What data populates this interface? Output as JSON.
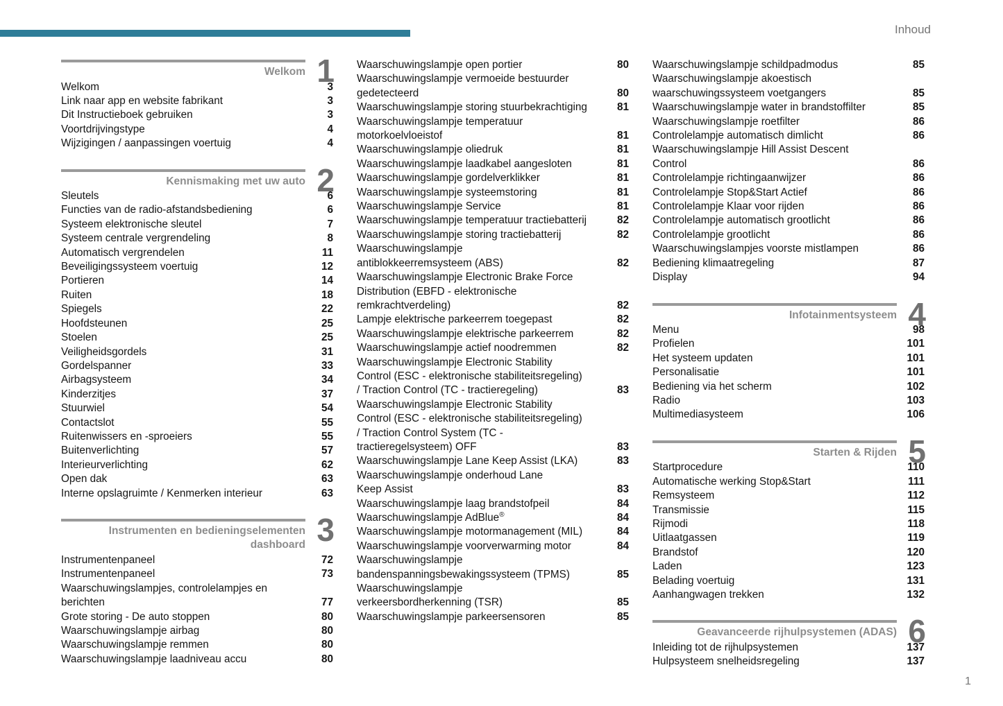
{
  "header": {
    "label": "Inhoud"
  },
  "footer": {
    "page_number": "1"
  },
  "colors": {
    "accent": "#2e7d98",
    "text": "#151515",
    "muted_gray": "#757575",
    "section_title_gray": "#8d8d8d",
    "section_rule_gray": "#9a9a9a",
    "section_numeral_gray": "#717171"
  },
  "columns": [
    {
      "blocks": [
        {
          "type": "section",
          "number": "1",
          "title_lines": [
            "Welkom"
          ]
        },
        {
          "type": "entries",
          "items": [
            {
              "label": "Welkom",
              "page": "3"
            },
            {
              "label": "Link naar app en website fabrikant",
              "page": "3"
            },
            {
              "label": "Dit Instructieboek gebruiken",
              "page": "3"
            },
            {
              "label": "Voortdrijvingstype",
              "page": "4"
            },
            {
              "label": "Wijzigingen / aanpassingen voertuig",
              "page": "4"
            }
          ]
        },
        {
          "type": "section",
          "number": "2",
          "title_lines": [
            "Kennismaking met uw auto"
          ]
        },
        {
          "type": "entries",
          "items": [
            {
              "label": "Sleutels",
              "page": "6"
            },
            {
              "label": "Functies van de radio-afstandsbediening",
              "page": "6"
            },
            {
              "label": "Systeem elektronische sleutel",
              "page": "7"
            },
            {
              "label": "Systeem centrale vergrendeling",
              "page": "8"
            },
            {
              "label": "Automatisch vergrendelen",
              "page": "11"
            },
            {
              "label": "Beveiligingssysteem voertuig",
              "page": "12"
            },
            {
              "label": "Portieren",
              "page": "14"
            },
            {
              "label": "Ruiten",
              "page": "18"
            },
            {
              "label": "Spiegels",
              "page": "22"
            },
            {
              "label": "Hoofdsteunen",
              "page": "25"
            },
            {
              "label": "Stoelen",
              "page": "25"
            },
            {
              "label": "Veiligheidsgordels",
              "page": "31"
            },
            {
              "label": "Gordelspanner",
              "page": "33"
            },
            {
              "label": "Airbagsysteem",
              "page": "34"
            },
            {
              "label": "Kinderzitjes",
              "page": "37"
            },
            {
              "label": "Stuurwiel",
              "page": "54"
            },
            {
              "label": "Contactslot",
              "page": "55"
            },
            {
              "label": "Ruitenwissers en -sproeiers",
              "page": "55"
            },
            {
              "label": "Buitenverlichting",
              "page": "57"
            },
            {
              "label": "Interieurverlichting",
              "page": "62"
            },
            {
              "label": "Open dak",
              "page": "63"
            },
            {
              "label": "Interne opslagruimte / Kenmerken interieur",
              "page": "63"
            }
          ]
        },
        {
          "type": "section",
          "number": "3",
          "title_lines": [
            "Instrumenten en bedieningselementen",
            "dashboard"
          ]
        },
        {
          "type": "entries",
          "items": [
            {
              "label": "Instrumentenpaneel",
              "page": "72"
            },
            {
              "label": "Instrumentenpaneel",
              "page": "73"
            },
            {
              "label": "Waarschuwingslampjes, controlelampjes en berichten",
              "page": "77"
            },
            {
              "label": "Grote storing - De auto stoppen",
              "page": "80"
            },
            {
              "label": "Waarschuwingslampje airbag",
              "page": "80"
            },
            {
              "label": "Waarschuwingslampje remmen",
              "page": "80"
            },
            {
              "label": "Waarschuwingslampje laadniveau accu",
              "page": "80"
            }
          ]
        }
      ]
    },
    {
      "blocks": [
        {
          "type": "entries",
          "items": [
            {
              "label": "Waarschuwingslampje open portier",
              "page": "80"
            },
            {
              "label": "Waarschuwingslampje vermoeide bestuurder gedetecteerd",
              "page": "80"
            },
            {
              "label": "Waarschuwingslampje storing stuurbekrachtiging",
              "page": "81"
            },
            {
              "label": "Waarschuwingslampje temperatuur motorkoelvloeistof",
              "page": "81"
            },
            {
              "label": "Waarschuwingslampje oliedruk",
              "page": "81"
            },
            {
              "label": "Waarschuwingslampje laadkabel aangesloten",
              "page": "81"
            },
            {
              "label": "Waarschuwingslampje gordelverklikker",
              "page": "81"
            },
            {
              "label": "Waarschuwingslampje systeemstoring",
              "page": "81"
            },
            {
              "label": "Waarschuwingslampje Service",
              "page": "81"
            },
            {
              "label": "Waarschuwingslampje temperatuur tractiebatterij",
              "page": "82"
            },
            {
              "label": "Waarschuwingslampje storing tractiebatterij",
              "page": "82"
            },
            {
              "label": "Waarschuwingslampje antiblokkeerremsysteem (ABS)",
              "page": "82"
            },
            {
              "label": "Waarschuwingslampje Electronic Brake Force Distribution (EBFD - elektronische remkrachtverdeling)",
              "page": "82"
            },
            {
              "label": "Lampje elektrische parkeerrem toegepast",
              "page": "82"
            },
            {
              "label": "Waarschuwingslampje elektrische parkeerrem",
              "page": "82"
            },
            {
              "label": "Waarschuwingslampje actief noodremmen",
              "page": "82"
            },
            {
              "label": "Waarschuwingslampje Electronic Stability Control (ESC - elektronische stabiliteitsregeling) / Traction Control (TC - tractieregeling)",
              "page": "83"
            },
            {
              "label": "Waarschuwingslampje Electronic Stability Control (ESC - elektronische stabiliteitsregeling) / Traction Control System (TC - tractieregelsysteem) OFF",
              "page": "83"
            },
            {
              "label": "Waarschuwingslampje Lane Keep Assist (LKA)",
              "page": "83"
            },
            {
              "label": "Waarschuwingslampje onderhoud Lane Keep Assist",
              "page": "83"
            },
            {
              "label": "Waarschuwingslampje laag brandstofpeil",
              "page": "84"
            },
            {
              "label": "Waarschuwingslampje AdBlue®",
              "page": "84"
            },
            {
              "label": "Waarschuwingslampje motormanagement (MIL)",
              "page": "84"
            },
            {
              "label": "Waarschuwingslampje voorverwarming motor",
              "page": "84"
            },
            {
              "label": "Waarschuwingslampje bandenspanningsbewakingssysteem (TPMS)",
              "page": "85"
            },
            {
              "label": "Waarschuwingslampje verkeersbordherkenning (TSR)",
              "page": "85"
            },
            {
              "label": "Waarschuwingslampje parkeersensoren",
              "page": "85"
            }
          ]
        }
      ]
    },
    {
      "blocks": [
        {
          "type": "entries",
          "items": [
            {
              "label": "Waarschuwingslampje schildpadmodus",
              "page": "85"
            },
            {
              "label": "Waarschuwingslampje akoestisch waarschuwingssysteem voetgangers",
              "page": "85"
            },
            {
              "label": "Waarschuwingslampje water in brandstoffilter",
              "page": "85"
            },
            {
              "label": "Waarschuwingslampje roetfilter",
              "page": "86"
            },
            {
              "label": "Controlelampje automatisch dimlicht",
              "page": "86"
            },
            {
              "label": "Waarschuwingslampje Hill Assist Descent Control",
              "page": "86"
            },
            {
              "label": "Controlelampje richtingaanwijzer",
              "page": "86"
            },
            {
              "label": "Controlelampje Stop&Start Actief",
              "page": "86"
            },
            {
              "label": "Controlelampje Klaar voor rijden",
              "page": "86"
            },
            {
              "label": "Controlelampje automatisch grootlicht",
              "page": "86"
            },
            {
              "label": "Controlelampje grootlicht",
              "page": "86"
            },
            {
              "label": "Waarschuwingslampjes voorste mistlampen",
              "page": "86"
            },
            {
              "label": "Bediening klimaatregeling",
              "page": "87"
            },
            {
              "label": "Display",
              "page": "94"
            }
          ]
        },
        {
          "type": "section",
          "number": "4",
          "title_lines": [
            "Infotainmentsysteem"
          ]
        },
        {
          "type": "entries",
          "items": [
            {
              "label": "Menu",
              "page": "98"
            },
            {
              "label": "Profielen",
              "page": "101"
            },
            {
              "label": "Het systeem updaten",
              "page": "101"
            },
            {
              "label": "Personalisatie",
              "page": "101"
            },
            {
              "label": "Bediening via het scherm",
              "page": "102"
            },
            {
              "label": "Radio",
              "page": "103"
            },
            {
              "label": "Multimediasysteem",
              "page": "106"
            }
          ]
        },
        {
          "type": "section",
          "number": "5",
          "title_lines": [
            "Starten & Rijden"
          ]
        },
        {
          "type": "entries",
          "items": [
            {
              "label": "Startprocedure",
              "page": "110"
            },
            {
              "label": "Automatische werking Stop&Start",
              "page": "111"
            },
            {
              "label": "Remsysteem",
              "page": "112"
            },
            {
              "label": "Transmissie",
              "page": "115"
            },
            {
              "label": "Rijmodi",
              "page": "118"
            },
            {
              "label": "Uitlaatgassen",
              "page": "119"
            },
            {
              "label": "Brandstof",
              "page": "120"
            },
            {
              "label": "Laden",
              "page": "123"
            },
            {
              "label": "Belading voertuig",
              "page": "131"
            },
            {
              "label": "Aanhangwagen trekken",
              "page": "132"
            }
          ]
        },
        {
          "type": "section",
          "number": "6",
          "title_lines": [
            "Geavanceerde rijhulpsystemen (ADAS)"
          ]
        },
        {
          "type": "entries",
          "items": [
            {
              "label": "Inleiding tot de rijhulpsystemen",
              "page": "137"
            },
            {
              "label": "Hulpsysteem snelheidsregeling",
              "page": "137"
            }
          ]
        }
      ]
    }
  ]
}
